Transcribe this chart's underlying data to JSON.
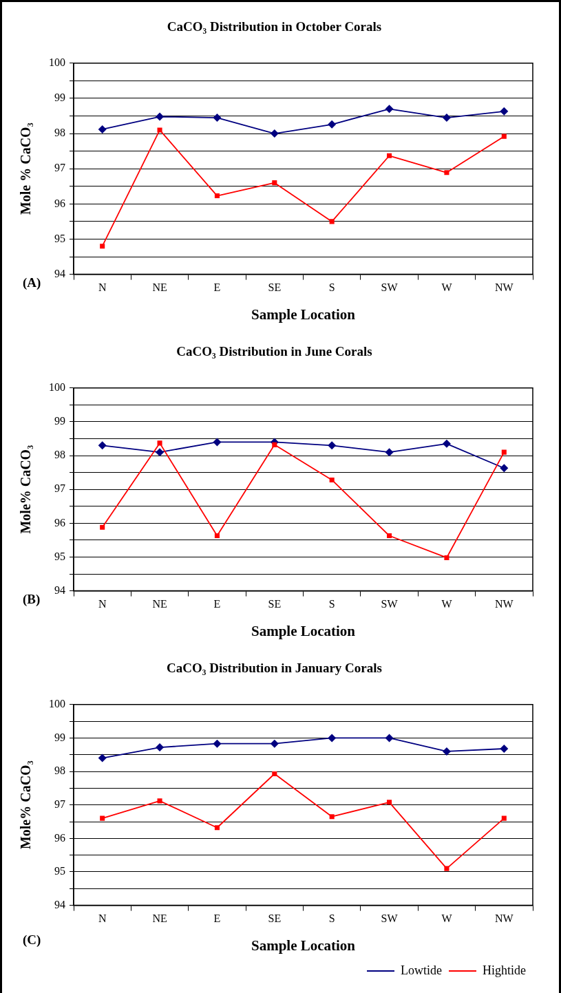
{
  "chart_data": [
    {
      "type": "line",
      "title": "CaCO₃ Distribution in October Corals",
      "xlabel": "Sample Location",
      "ylabel": "Mole % CaCO₃",
      "categories": [
        "N",
        "NE",
        "E",
        "SE",
        "S",
        "SW",
        "W",
        "NW"
      ],
      "ylim": [
        94,
        100
      ],
      "yticks": [
        94,
        {
          "value": 94.5,
          "label": null
        },
        95,
        {
          "value": 95.5,
          "label": null
        },
        96,
        {
          "value": 96.5,
          "label": null
        },
        97,
        {
          "value": 97.5,
          "label": null
        },
        98,
        {
          "value": 98.5,
          "label": null
        },
        99,
        {
          "value": 99.5,
          "label": null
        },
        100
      ],
      "grid": "y",
      "legend": false,
      "annotations": [
        "(A)"
      ],
      "series": [
        {
          "color": "#000080",
          "marker": "diamond",
          "values": [
            98.12,
            98.48,
            98.45,
            98.0,
            98.26,
            98.7,
            98.45,
            98.63
          ]
        },
        {
          "color": "#ff0000",
          "marker": "square",
          "values": [
            94.8,
            98.1,
            96.23,
            96.6,
            95.5,
            97.37,
            96.89,
            97.92
          ]
        }
      ]
    },
    {
      "type": "line",
      "title": "CaCO₃ Distribution in June Corals",
      "xlabel": "Sample Location",
      "ylabel": "Mole% CaCO₃",
      "categories": [
        "N",
        "NE",
        "E",
        "SE",
        "S",
        "SW",
        "W",
        "NW"
      ],
      "ylim": [
        94,
        100
      ],
      "yticks": [
        94,
        {
          "value": 94.5,
          "label": null
        },
        95,
        {
          "value": 95.5,
          "label": null
        },
        96,
        {
          "value": 96.5,
          "label": null
        },
        97,
        {
          "value": 97.5,
          "label": null
        },
        98,
        {
          "value": 98.5,
          "label": null
        },
        99,
        {
          "value": 99.5,
          "label": null
        },
        100
      ],
      "grid": "y",
      "legend": false,
      "annotations": [
        "(B)"
      ],
      "series": [
        {
          "color": "#000080",
          "marker": "diamond",
          "values": [
            98.3,
            98.1,
            98.4,
            98.4,
            98.3,
            98.1,
            98.35,
            97.63
          ]
        },
        {
          "color": "#ff0000",
          "marker": "square",
          "values": [
            95.88,
            98.37,
            95.63,
            98.32,
            97.28,
            95.63,
            94.98,
            98.1
          ]
        }
      ]
    },
    {
      "type": "line",
      "title": "CaCO₃ Distribution in January Corals",
      "xlabel": "Sample Location",
      "ylabel": "Mole% CaCO₃",
      "categories": [
        "N",
        "NE",
        "E",
        "SE",
        "S",
        "SW",
        "W",
        "NW"
      ],
      "ylim": [
        94,
        100
      ],
      "yticks": [
        94,
        {
          "value": 94.5,
          "label": null
        },
        95,
        {
          "value": 95.5,
          "label": null
        },
        96,
        {
          "value": 96.5,
          "label": null
        },
        97,
        {
          "value": 97.5,
          "label": null
        },
        98,
        {
          "value": 98.5,
          "label": null
        },
        99,
        {
          "value": 99.5,
          "label": null
        },
        100
      ],
      "grid": "y",
      "legend": "bottom right",
      "annotations": [
        "(C)"
      ],
      "series": [
        {
          "name": "Lowtide",
          "color": "#000080",
          "marker": "diamond",
          "values": [
            98.4,
            98.72,
            98.83,
            98.83,
            99.0,
            99.0,
            98.6,
            98.68
          ]
        },
        {
          "name": "Hightide",
          "color": "#ff0000",
          "marker": "square",
          "values": [
            96.6,
            97.12,
            96.32,
            97.93,
            96.65,
            97.08,
            95.1,
            96.6
          ]
        }
      ]
    }
  ]
}
